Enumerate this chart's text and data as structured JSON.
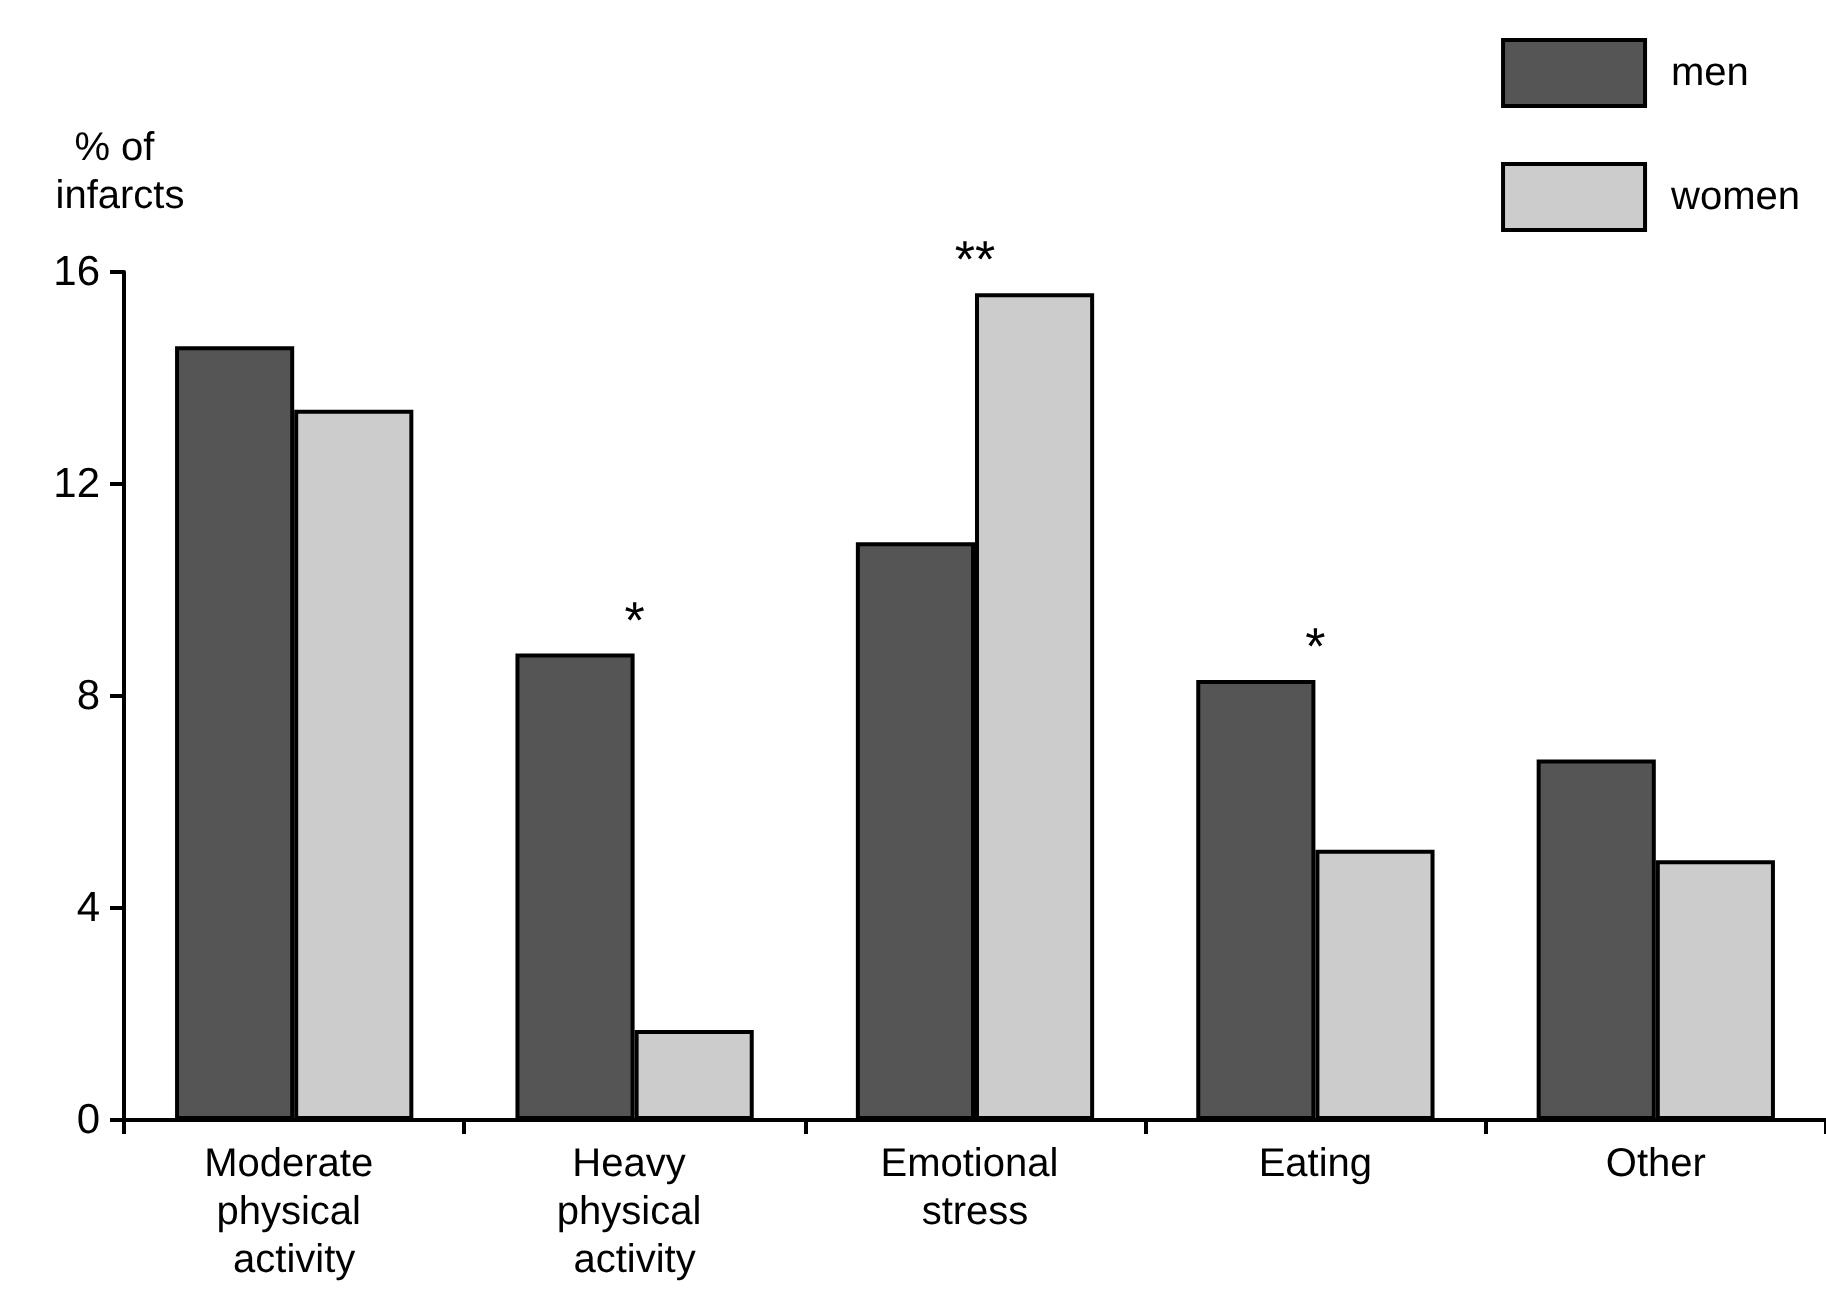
{
  "chart_data": {
    "type": "bar",
    "ylabel": "% of infarcts",
    "categories": [
      "Moderate physical activity",
      "Heavy physical activity",
      "Emotional stress",
      "Eating",
      "Other"
    ],
    "series": [
      {
        "name": "men",
        "color": "#555555",
        "values": [
          14.6,
          8.8,
          10.9,
          8.3,
          6.8
        ]
      },
      {
        "name": "women",
        "color": "#cccccc",
        "values": [
          13.4,
          1.7,
          15.6,
          5.1,
          4.9
        ]
      }
    ],
    "ylim": [
      0,
      16
    ],
    "yticks": [
      0,
      4,
      8,
      12,
      16
    ],
    "grid": false,
    "legend": "top right",
    "annotations": [
      {
        "text": "*",
        "x": "Heavy physical activity",
        "y": 8.8
      },
      {
        "text": "**",
        "x": "Emotional stress",
        "y": 15.6
      },
      {
        "text": "*",
        "x": "Eating",
        "y": 8.3
      }
    ]
  }
}
